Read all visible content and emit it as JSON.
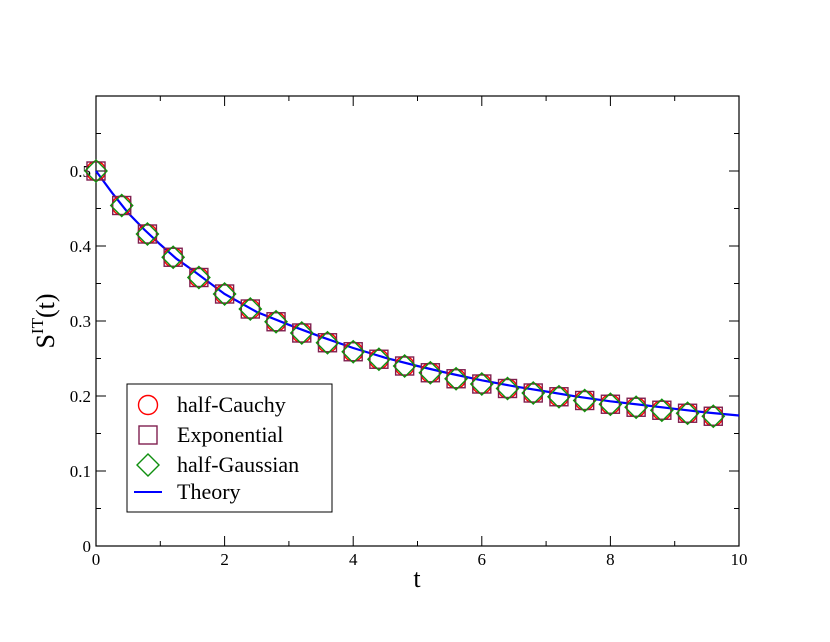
{
  "chart_data": {
    "type": "scatter",
    "xlabel": "t",
    "ylabel": {
      "base": "S",
      "sup": "IT",
      "suffix": "(t)"
    },
    "xlim": [
      0,
      10
    ],
    "ylim": [
      0,
      0.6
    ],
    "xticks": [
      0,
      2,
      4,
      6,
      8,
      10
    ],
    "xtick_labels": [
      "0",
      "2",
      "4",
      "6",
      "8",
      "10"
    ],
    "yticks": [
      0,
      0.1,
      0.2,
      0.3,
      0.4,
      0.5
    ],
    "ytick_labels": [
      "0",
      "0.1",
      "0.2",
      "0.3",
      "0.4",
      "0.5"
    ],
    "grid": false,
    "legend_position": "bottom-left",
    "x": [
      0,
      0.4,
      0.8,
      1.2,
      1.6,
      2.0,
      2.4,
      2.8,
      3.2,
      3.6,
      4.0,
      4.4,
      4.8,
      5.2,
      5.6,
      6.0,
      6.4,
      6.8,
      7.2,
      7.6,
      8.0,
      8.4,
      8.8,
      9.2,
      9.6
    ],
    "series": [
      {
        "name": "half-Cauchy",
        "marker": "circle",
        "color": "#ff0000",
        "values": [
          0.5,
          0.454,
          0.416,
          0.385,
          0.358,
          0.336,
          0.316,
          0.299,
          0.284,
          0.271,
          0.259,
          0.249,
          0.24,
          0.231,
          0.223,
          0.216,
          0.21,
          0.204,
          0.199,
          0.194,
          0.189,
          0.185,
          0.181,
          0.177,
          0.173
        ]
      },
      {
        "name": "Exponential",
        "marker": "square",
        "color": "#7f1f4f",
        "values": [
          0.5,
          0.454,
          0.416,
          0.385,
          0.358,
          0.336,
          0.316,
          0.299,
          0.284,
          0.271,
          0.259,
          0.249,
          0.24,
          0.231,
          0.223,
          0.216,
          0.21,
          0.204,
          0.199,
          0.194,
          0.189,
          0.185,
          0.181,
          0.177,
          0.173
        ]
      },
      {
        "name": "half-Gaussian",
        "marker": "diamond",
        "color": "#0f8f0f",
        "values": [
          0.5,
          0.454,
          0.416,
          0.385,
          0.358,
          0.336,
          0.316,
          0.299,
          0.284,
          0.271,
          0.259,
          0.249,
          0.24,
          0.231,
          0.223,
          0.216,
          0.21,
          0.204,
          0.199,
          0.194,
          0.189,
          0.185,
          0.181,
          0.177,
          0.173
        ]
      },
      {
        "name": "Theory",
        "marker": "line",
        "color": "#0000ff",
        "x": [
          0,
          0.25,
          0.5,
          0.75,
          1.0,
          1.25,
          1.5,
          2.0,
          2.5,
          3.0,
          3.5,
          4.0,
          4.5,
          5.0,
          5.5,
          6.0,
          6.5,
          7.0,
          7.5,
          8.0,
          8.5,
          9.0,
          9.5,
          10.0
        ],
        "values": [
          0.5,
          0.471,
          0.444,
          0.422,
          0.402,
          0.383,
          0.368,
          0.336,
          0.312,
          0.295,
          0.279,
          0.264,
          0.251,
          0.24,
          0.23,
          0.221,
          0.213,
          0.206,
          0.199,
          0.193,
          0.188,
          0.183,
          0.178,
          0.174
        ]
      }
    ]
  }
}
